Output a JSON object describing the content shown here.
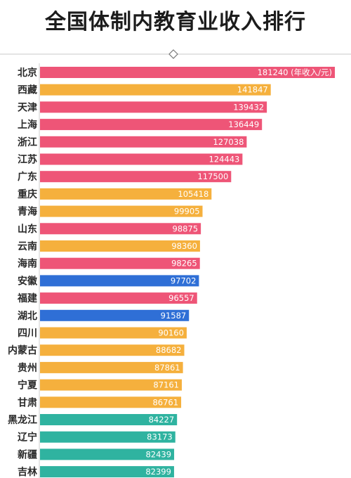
{
  "chart_data": {
    "type": "bar",
    "orientation": "horizontal",
    "title": "全国体制内教育业收入排行",
    "unit_label": "(年收入/元)",
    "categories": [
      "北京",
      "西藏",
      "天津",
      "上海",
      "浙江",
      "江苏",
      "广东",
      "重庆",
      "青海",
      "山东",
      "云南",
      "海南",
      "安徽",
      "福建",
      "湖北",
      "四川",
      "内蒙古",
      "贵州",
      "宁夏",
      "甘肃",
      "黑龙江",
      "辽宁",
      "新疆",
      "吉林"
    ],
    "values": [
      181240,
      141847,
      139432,
      136449,
      127038,
      124443,
      117500,
      105418,
      99905,
      98875,
      98360,
      98265,
      97702,
      96557,
      91587,
      90160,
      88682,
      87861,
      87161,
      86761,
      84227,
      83173,
      82439,
      82399
    ],
    "colors": [
      "#ee5577",
      "#f5b03d",
      "#ee5577",
      "#ee5577",
      "#ee5577",
      "#ee5577",
      "#ee5577",
      "#f5b03d",
      "#f5b03d",
      "#ee5577",
      "#f5b03d",
      "#ee5577",
      "#2f6fd6",
      "#ee5577",
      "#2f6fd6",
      "#f5b03d",
      "#f5b03d",
      "#f5b03d",
      "#f5b03d",
      "#f5b03d",
      "#2fb3a0",
      "#2fb3a0",
      "#2fb3a0",
      "#2fb3a0"
    ],
    "legend": "none",
    "grid": false
  }
}
